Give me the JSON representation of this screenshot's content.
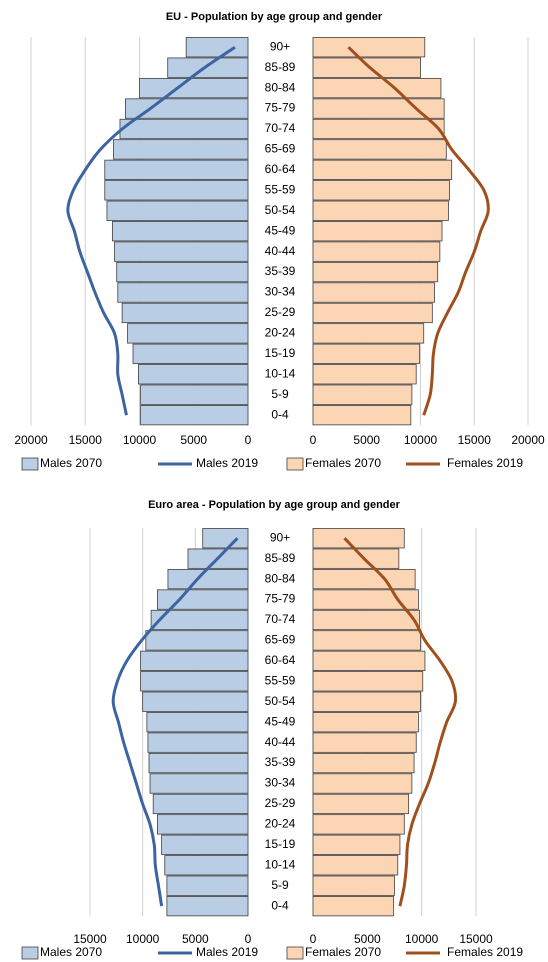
{
  "chart_data": [
    {
      "type": "pyramid",
      "title": "EU - Population by age group and gender",
      "categories": [
        "0-4",
        "5-9",
        "10-14",
        "15-19",
        "20-24",
        "25-29",
        "30-34",
        "35-39",
        "40-44",
        "45-49",
        "50-54",
        "55-59",
        "60-64",
        "65-69",
        "70-74",
        "75-79",
        "80-84",
        "85-89",
        "90+"
      ],
      "xlim": [
        0,
        20000
      ],
      "xticks": [
        0,
        5000,
        10000,
        15000,
        20000
      ],
      "grid": true,
      "series": [
        {
          "name": "Males 2070",
          "mark": "bar",
          "side": "left",
          "color": "#b9cde5",
          "values": [
            9900,
            9900,
            10100,
            10600,
            11100,
            11600,
            12000,
            12100,
            12300,
            12500,
            13000,
            13200,
            13200,
            12400,
            11800,
            11300,
            10000,
            7400,
            5700
          ]
        },
        {
          "name": "Males 2019",
          "mark": "line",
          "side": "left",
          "color": "#3c64a0",
          "values": [
            11200,
            11600,
            12000,
            12000,
            12300,
            13300,
            14100,
            14800,
            15500,
            16000,
            16600,
            16100,
            15000,
            13600,
            11600,
            9000,
            6500,
            4000,
            1200
          ]
        },
        {
          "name": "Females 2070",
          "mark": "bar",
          "side": "right",
          "color": "#fcd5b5",
          "values": [
            9100,
            9200,
            9600,
            9900,
            10300,
            11100,
            11300,
            11600,
            11800,
            12000,
            12600,
            12700,
            12900,
            12400,
            12200,
            12200,
            11900,
            10000,
            10400
          ]
        },
        {
          "name": "Females 2019",
          "mark": "line",
          "side": "right",
          "color": "#a0501c",
          "values": [
            10300,
            10900,
            11100,
            11200,
            11600,
            12500,
            13500,
            14200,
            15000,
            15600,
            16300,
            15900,
            14500,
            12900,
            11700,
            9600,
            7600,
            5300,
            3300
          ]
        }
      ]
    },
    {
      "type": "pyramid",
      "title": "Euro area - Population by age group and gender",
      "categories": [
        "0-4",
        "5-9",
        "10-14",
        "15-19",
        "20-24",
        "25-29",
        "30-34",
        "35-39",
        "40-44",
        "45-49",
        "50-54",
        "55-59",
        "60-64",
        "65-69",
        "70-74",
        "75-79",
        "80-84",
        "85-89",
        "90+"
      ],
      "xlim": [
        0,
        15000
      ],
      "xticks": [
        0,
        5000,
        10000,
        15000
      ],
      "grid": true,
      "series": [
        {
          "name": "Males 2070",
          "mark": "bar",
          "side": "left",
          "color": "#b9cde5",
          "values": [
            7700,
            7700,
            7900,
            8200,
            8600,
            9000,
            9300,
            9400,
            9500,
            9600,
            10000,
            10200,
            10200,
            9700,
            9200,
            8600,
            7600,
            5700,
            4300
          ]
        },
        {
          "name": "Males 2019",
          "mark": "line",
          "side": "left",
          "color": "#3c64a0",
          "values": [
            8200,
            8500,
            8800,
            8900,
            9300,
            10000,
            10600,
            11200,
            11800,
            12300,
            12800,
            12400,
            11500,
            10100,
            8400,
            6500,
            4800,
            2900,
            1000
          ]
        },
        {
          "name": "Females 2070",
          "mark": "bar",
          "side": "right",
          "color": "#fcd5b5",
          "values": [
            7400,
            7500,
            7800,
            8000,
            8400,
            8800,
            9100,
            9300,
            9500,
            9700,
            9900,
            10100,
            10300,
            9900,
            9800,
            9700,
            9400,
            7900,
            8400
          ]
        },
        {
          "name": "Females 2019",
          "mark": "line",
          "side": "right",
          "color": "#a0501c",
          "values": [
            8000,
            8400,
            8600,
            8700,
            9100,
            9800,
            10600,
            11200,
            11700,
            12300,
            13100,
            12800,
            11700,
            10300,
            9300,
            7800,
            6600,
            4700,
            2900
          ]
        }
      ]
    }
  ]
}
